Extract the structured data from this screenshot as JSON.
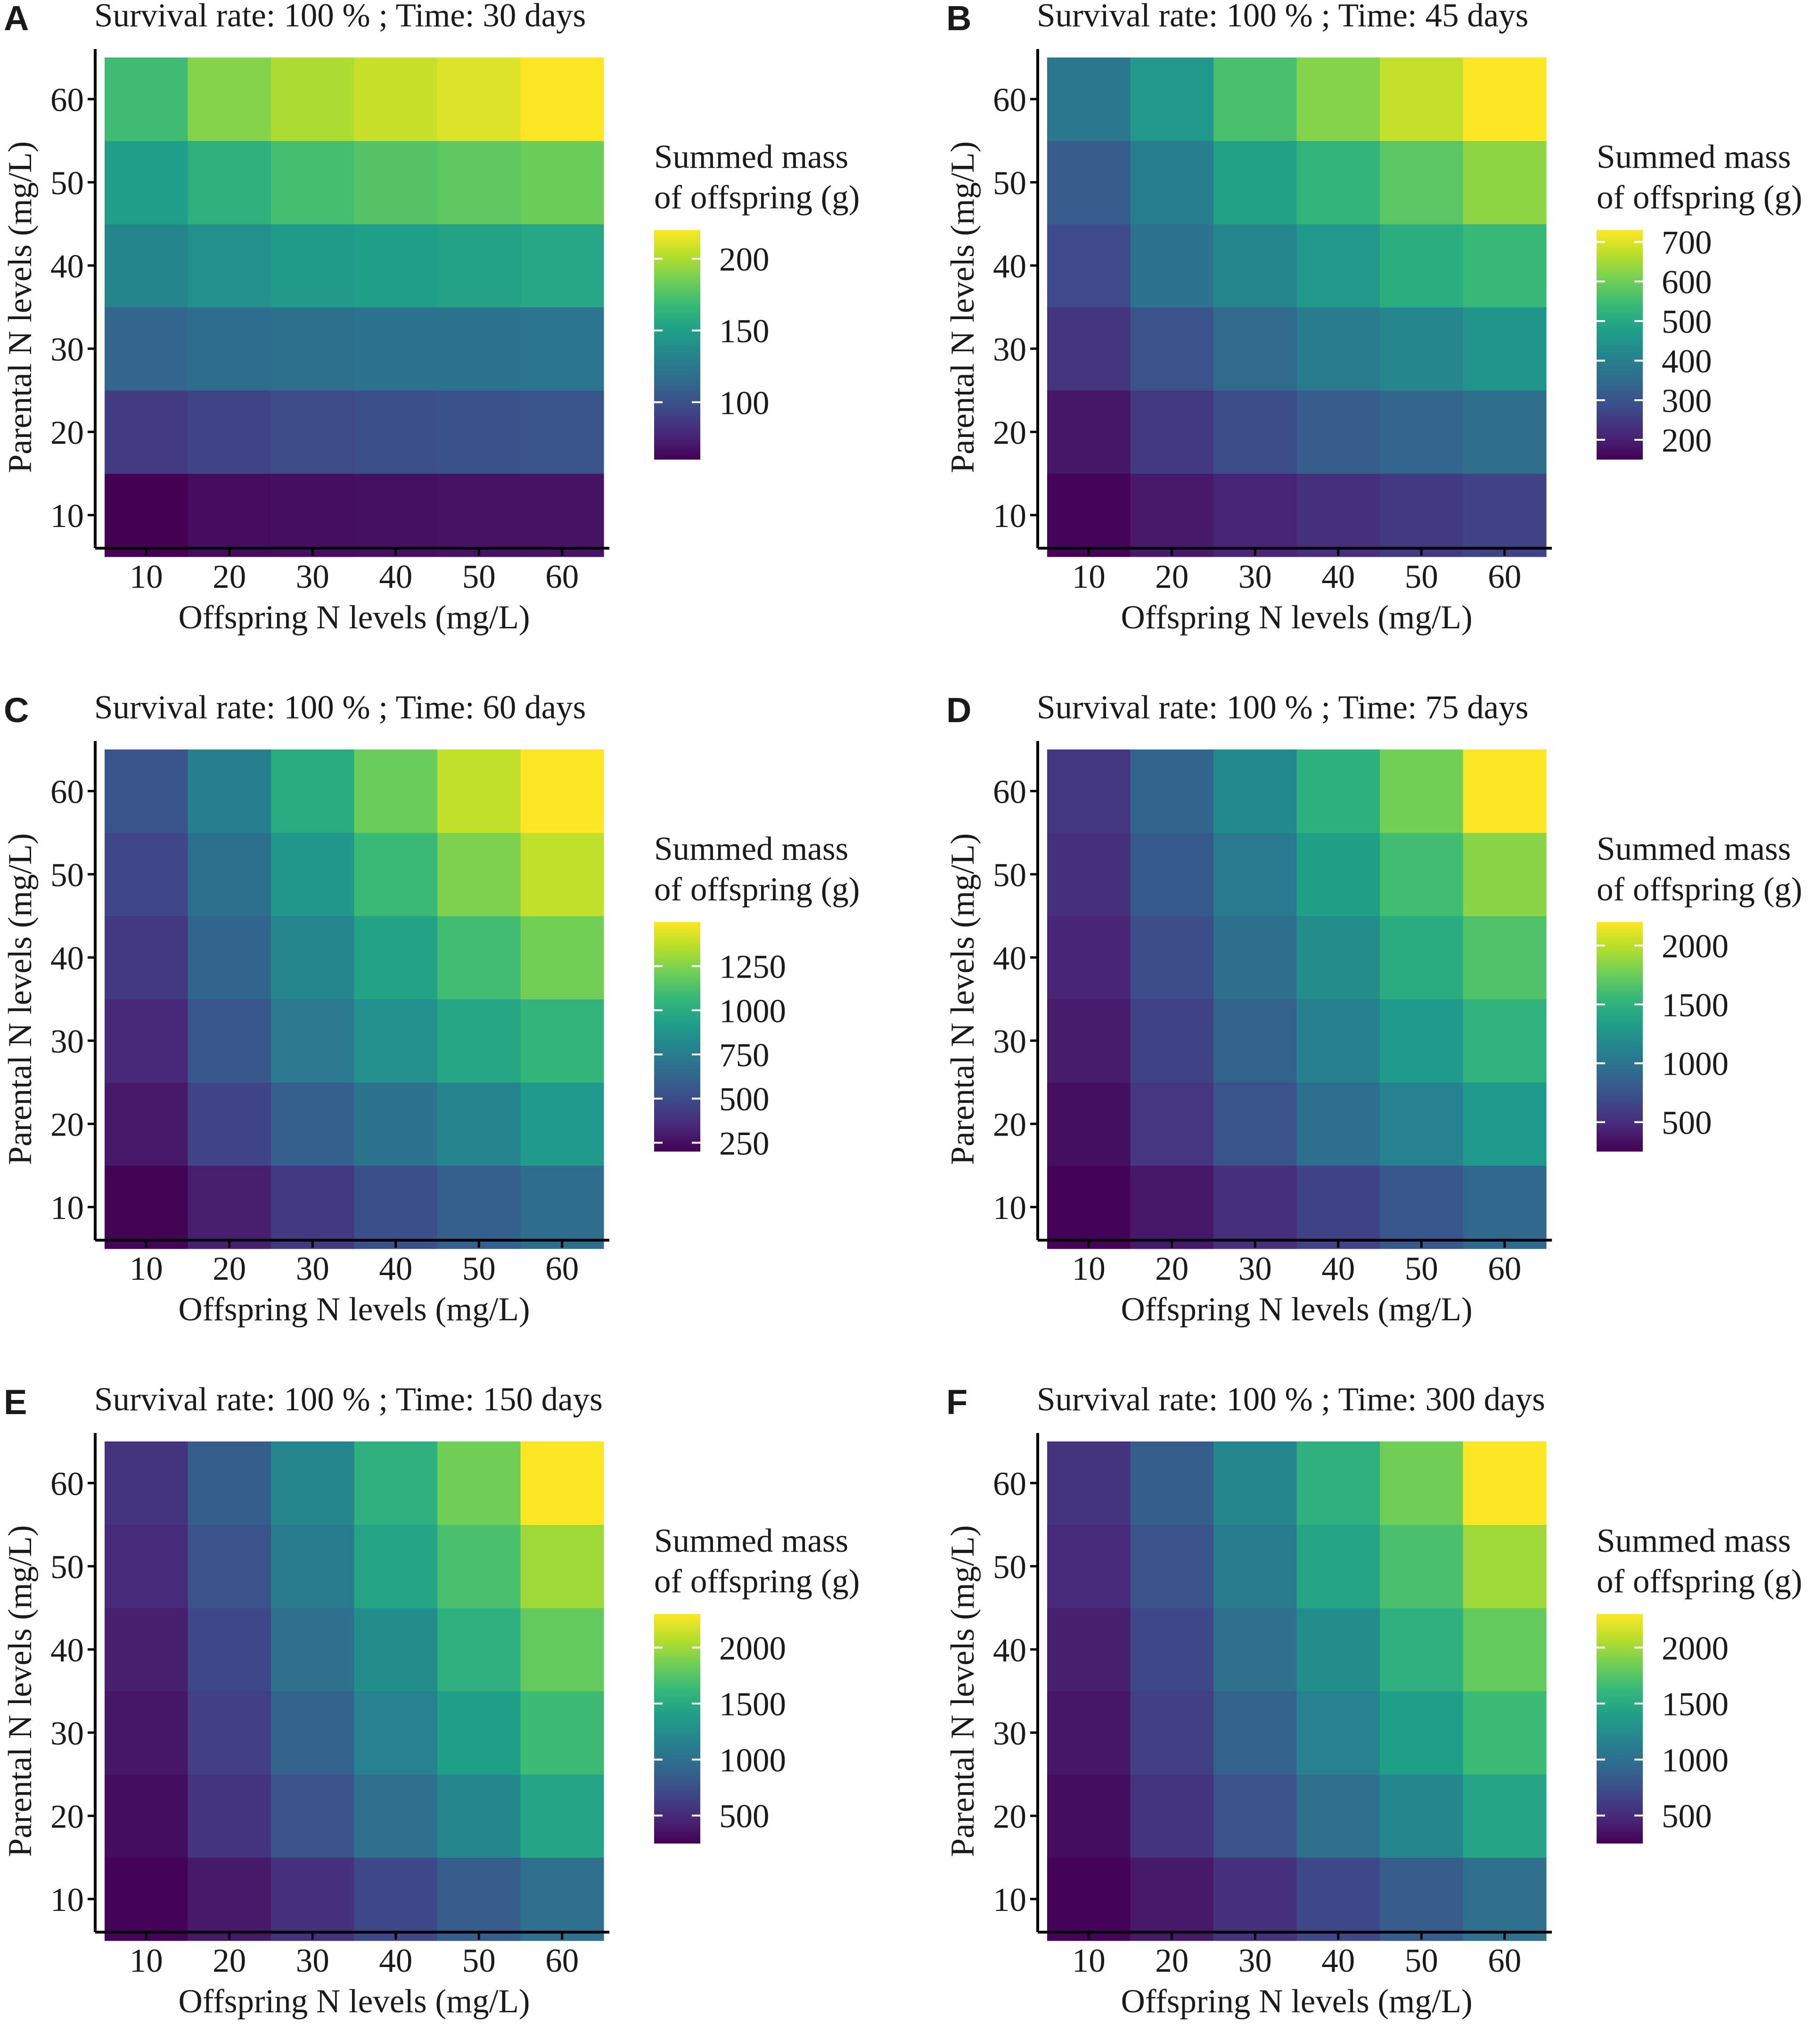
{
  "figure": {
    "chart_data": [
      {
        "type": "heatmap",
        "panel_label": "A",
        "title": "Survival rate: 100 % ; Time: 30 days",
        "xlabel": "Offspring N levels (mg/L)",
        "ylabel": "Parental N levels (mg/L)",
        "x": [
          10,
          20,
          30,
          40,
          50,
          60
        ],
        "y": [
          10,
          20,
          30,
          40,
          50,
          60
        ],
        "legend_title": [
          "Summed mass",
          "of offspring (g)"
        ],
        "legend_ticks": [
          100,
          150,
          200
        ],
        "color_range": [
          60,
          220
        ],
        "z": [
          [
            60,
            65,
            66,
            67,
            68,
            68
          ],
          [
            88,
            93,
            97,
            99,
            101,
            102
          ],
          [
            112,
            117,
            119,
            120,
            121,
            122
          ],
          [
            133,
            140,
            147,
            150,
            152,
            155
          ],
          [
            150,
            162,
            172,
            177,
            180,
            184
          ],
          [
            170,
            190,
            200,
            207,
            212,
            220
          ]
        ]
      },
      {
        "type": "heatmap",
        "panel_label": "B",
        "title": "Survival rate: 100 % ; Time: 45 days",
        "xlabel": "Offspring N levels (mg/L)",
        "ylabel": "Parental N levels (mg/L)",
        "x": [
          10,
          20,
          30,
          40,
          50,
          60
        ],
        "y": [
          10,
          20,
          30,
          40,
          50,
          60
        ],
        "legend_title": [
          "Summed mass",
          "of offspring (g)"
        ],
        "legend_ticks": [
          200,
          300,
          400,
          500,
          600,
          700
        ],
        "color_range": [
          150,
          730
        ],
        "z": [
          [
            155,
            190,
            210,
            230,
            250,
            265
          ],
          [
            185,
            250,
            290,
            320,
            340,
            360
          ],
          [
            240,
            300,
            350,
            390,
            420,
            450
          ],
          [
            280,
            370,
            420,
            460,
            510,
            540
          ],
          [
            320,
            400,
            480,
            530,
            580,
            630
          ],
          [
            380,
            460,
            560,
            620,
            680,
            730
          ]
        ]
      },
      {
        "type": "heatmap",
        "panel_label": "C",
        "title": "Survival rate: 100 % ; Time: 60 days",
        "xlabel": "Offspring N levels (mg/L)",
        "ylabel": "Parental N levels (mg/L)",
        "x": [
          10,
          20,
          30,
          40,
          50,
          60
        ],
        "y": [
          10,
          20,
          30,
          40,
          50,
          60
        ],
        "legend_title": [
          "Summed mass",
          "of offspring (g)"
        ],
        "legend_ticks": [
          250,
          500,
          750,
          1000,
          1250
        ],
        "color_range": [
          200,
          1500
        ],
        "z": [
          [
            210,
            310,
            420,
            520,
            590,
            660
          ],
          [
            290,
            470,
            590,
            700,
            790,
            900
          ],
          [
            350,
            560,
            730,
            850,
            970,
            1050
          ],
          [
            420,
            620,
            800,
            950,
            1100,
            1220
          ],
          [
            480,
            680,
            880,
            1080,
            1240,
            1380
          ],
          [
            540,
            760,
            1000,
            1200,
            1380,
            1500
          ]
        ]
      },
      {
        "type": "heatmap",
        "panel_label": "D",
        "title": "Survival rate: 100 % ; Time: 75 days",
        "xlabel": "Offspring N levels (mg/L)",
        "ylabel": "Parental N levels (mg/L)",
        "x": [
          10,
          20,
          30,
          40,
          50,
          60
        ],
        "y": [
          10,
          20,
          30,
          40,
          50,
          60
        ],
        "legend_title": [
          "Summed mass",
          "of offspring (g)"
        ],
        "legend_ticks": [
          500,
          1000,
          1500,
          2000
        ],
        "color_range": [
          250,
          2200
        ],
        "z": [
          [
            260,
            380,
            520,
            640,
            780,
            900
          ],
          [
            330,
            560,
            760,
            950,
            1120,
            1300
          ],
          [
            400,
            640,
            860,
            1100,
            1300,
            1500
          ],
          [
            450,
            720,
            960,
            1200,
            1450,
            1650
          ],
          [
            510,
            800,
            1050,
            1350,
            1600,
            1850
          ],
          [
            570,
            880,
            1170,
            1480,
            1780,
            2200
          ]
        ]
      },
      {
        "type": "heatmap",
        "panel_label": "E",
        "title": "Survival rate: 100 % ; Time: 150 days",
        "xlabel": "Offspring N levels (mg/L)",
        "ylabel": "Parental N levels (mg/L)",
        "x": [
          10,
          20,
          30,
          40,
          50,
          60
        ],
        "y": [
          10,
          20,
          30,
          40,
          50,
          60
        ],
        "legend_title": [
          "Summed mass",
          "of offspring (g)"
        ],
        "legend_ticks": [
          500,
          1000,
          1500,
          2000
        ],
        "color_range": [
          250,
          2300
        ],
        "z": [
          [
            260,
            390,
            540,
            700,
            850,
            1000
          ],
          [
            320,
            560,
            780,
            1000,
            1200,
            1450
          ],
          [
            380,
            640,
            900,
            1150,
            1400,
            1650
          ],
          [
            430,
            700,
            1000,
            1250,
            1550,
            1800
          ],
          [
            490,
            780,
            1100,
            1450,
            1700,
            2000
          ],
          [
            560,
            860,
            1200,
            1550,
            1850,
            2300
          ]
        ]
      },
      {
        "type": "heatmap",
        "panel_label": "F",
        "title": "Survival rate: 100 % ; Time: 300 days",
        "xlabel": "Offspring N levels (mg/L)",
        "ylabel": "Parental N levels (mg/L)",
        "x": [
          10,
          20,
          30,
          40,
          50,
          60
        ],
        "y": [
          10,
          20,
          30,
          40,
          50,
          60
        ],
        "legend_title": [
          "Summed mass",
          "of offspring (g)"
        ],
        "legend_ticks": [
          500,
          1000,
          1500,
          2000
        ],
        "color_range": [
          250,
          2300
        ],
        "z": [
          [
            260,
            390,
            540,
            700,
            850,
            1000
          ],
          [
            320,
            560,
            780,
            1000,
            1200,
            1450
          ],
          [
            380,
            640,
            900,
            1150,
            1400,
            1650
          ],
          [
            430,
            700,
            1000,
            1250,
            1550,
            1800
          ],
          [
            490,
            780,
            1100,
            1450,
            1700,
            2000
          ],
          [
            560,
            860,
            1200,
            1550,
            1850,
            2300
          ]
        ]
      }
    ]
  }
}
